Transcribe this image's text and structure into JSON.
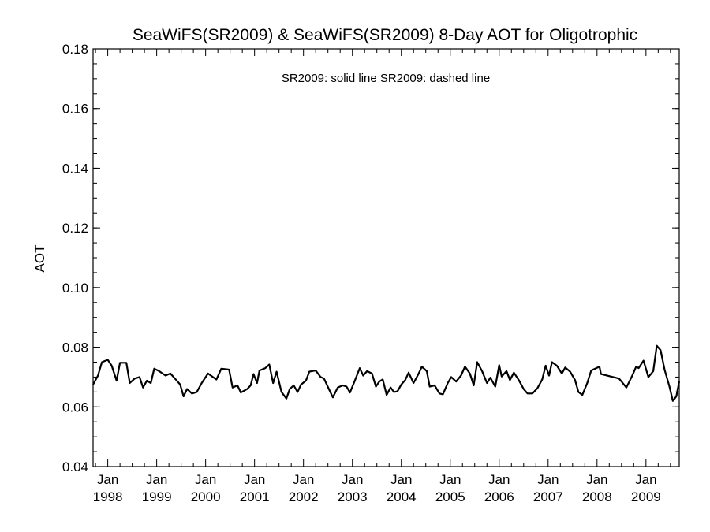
{
  "chart_data": {
    "type": "line",
    "title": "SeaWiFS(SR2009) & SeaWiFS(SR2009) 8-Day AOT for Oligotrophic",
    "xlabel": "",
    "ylabel": "AOT",
    "annotation": "SR2009: solid line   SR2009: dashed line",
    "ylim": [
      0.04,
      0.18
    ],
    "yticks": [
      "0.04",
      "0.06",
      "0.08",
      "0.10",
      "0.12",
      "0.14",
      "0.16",
      "0.18"
    ],
    "xlim": [
      1997.7,
      2009.68
    ],
    "xticks": [
      {
        "x": 1998.0,
        "month": "Jan",
        "year": "1998"
      },
      {
        "x": 1999.0,
        "month": "Jan",
        "year": "1999"
      },
      {
        "x": 2000.0,
        "month": "Jan",
        "year": "2000"
      },
      {
        "x": 2001.0,
        "month": "Jan",
        "year": "2001"
      },
      {
        "x": 2002.0,
        "month": "Jan",
        "year": "2002"
      },
      {
        "x": 2003.0,
        "month": "Jan",
        "year": "2003"
      },
      {
        "x": 2004.0,
        "month": "Jan",
        "year": "2004"
      },
      {
        "x": 2005.0,
        "month": "Jan",
        "year": "2005"
      },
      {
        "x": 2006.0,
        "month": "Jan",
        "year": "2006"
      },
      {
        "x": 2007.0,
        "month": "Jan",
        "year": "2007"
      },
      {
        "x": 2008.0,
        "month": "Jan",
        "year": "2008"
      },
      {
        "x": 2009.0,
        "month": "Jan",
        "year": "2009"
      }
    ],
    "grid": false,
    "series": [
      {
        "style": "solid",
        "color": "#000000",
        "points": [
          [
            1997.7,
            0.0675
          ],
          [
            1997.8,
            0.0705
          ],
          [
            1997.88,
            0.075
          ],
          [
            1998.0,
            0.0758
          ],
          [
            1998.08,
            0.0738
          ],
          [
            1998.18,
            0.0688
          ],
          [
            1998.25,
            0.0748
          ],
          [
            1998.38,
            0.0748
          ],
          [
            1998.45,
            0.068
          ],
          [
            1998.55,
            0.0695
          ],
          [
            1998.65,
            0.07
          ],
          [
            1998.72,
            0.0665
          ],
          [
            1998.8,
            0.0688
          ],
          [
            1998.88,
            0.068
          ],
          [
            1998.95,
            0.0728
          ],
          [
            1999.05,
            0.072
          ],
          [
            1999.18,
            0.0705
          ],
          [
            1999.28,
            0.0712
          ],
          [
            1999.4,
            0.069
          ],
          [
            1999.48,
            0.0675
          ],
          [
            1999.55,
            0.0635
          ],
          [
            1999.62,
            0.066
          ],
          [
            1999.72,
            0.0645
          ],
          [
            1999.82,
            0.065
          ],
          [
            1999.92,
            0.068
          ],
          [
            2000.05,
            0.0712
          ],
          [
            2000.15,
            0.07
          ],
          [
            2000.22,
            0.0692
          ],
          [
            2000.32,
            0.0728
          ],
          [
            2000.48,
            0.0725
          ],
          [
            2000.55,
            0.0665
          ],
          [
            2000.65,
            0.0672
          ],
          [
            2000.72,
            0.0648
          ],
          [
            2000.85,
            0.066
          ],
          [
            2000.92,
            0.0672
          ],
          [
            2000.98,
            0.071
          ],
          [
            2001.05,
            0.068
          ],
          [
            2001.1,
            0.0722
          ],
          [
            2001.22,
            0.073
          ],
          [
            2001.3,
            0.0742
          ],
          [
            2001.38,
            0.068
          ],
          [
            2001.45,
            0.0718
          ],
          [
            2001.55,
            0.065
          ],
          [
            2001.65,
            0.0628
          ],
          [
            2001.72,
            0.066
          ],
          [
            2001.8,
            0.0672
          ],
          [
            2001.88,
            0.065
          ],
          [
            2001.95,
            0.0675
          ],
          [
            2002.05,
            0.0688
          ],
          [
            2002.12,
            0.0718
          ],
          [
            2002.25,
            0.0722
          ],
          [
            2002.35,
            0.07
          ],
          [
            2002.42,
            0.0695
          ],
          [
            2002.52,
            0.066
          ],
          [
            2002.6,
            0.0632
          ],
          [
            2002.7,
            0.0665
          ],
          [
            2002.8,
            0.0672
          ],
          [
            2002.88,
            0.0668
          ],
          [
            2002.95,
            0.0648
          ],
          [
            2003.05,
            0.0688
          ],
          [
            2003.15,
            0.073
          ],
          [
            2003.22,
            0.0705
          ],
          [
            2003.3,
            0.072
          ],
          [
            2003.4,
            0.0712
          ],
          [
            2003.48,
            0.0668
          ],
          [
            2003.55,
            0.0685
          ],
          [
            2003.62,
            0.0692
          ],
          [
            2003.7,
            0.064
          ],
          [
            2003.78,
            0.0665
          ],
          [
            2003.85,
            0.065
          ],
          [
            2003.92,
            0.0652
          ],
          [
            2004.0,
            0.0675
          ],
          [
            2004.08,
            0.069
          ],
          [
            2004.15,
            0.0715
          ],
          [
            2004.25,
            0.068
          ],
          [
            2004.35,
            0.071
          ],
          [
            2004.42,
            0.0735
          ],
          [
            2004.52,
            0.072
          ],
          [
            2004.58,
            0.0668
          ],
          [
            2004.68,
            0.0672
          ],
          [
            2004.78,
            0.0645
          ],
          [
            2004.85,
            0.0642
          ],
          [
            2004.95,
            0.068
          ],
          [
            2005.02,
            0.07
          ],
          [
            2005.12,
            0.0685
          ],
          [
            2005.22,
            0.0705
          ],
          [
            2005.3,
            0.0735
          ],
          [
            2005.4,
            0.0712
          ],
          [
            2005.48,
            0.0672
          ],
          [
            2005.55,
            0.075
          ],
          [
            2005.65,
            0.072
          ],
          [
            2005.75,
            0.068
          ],
          [
            2005.82,
            0.0698
          ],
          [
            2005.92,
            0.0668
          ],
          [
            2006.0,
            0.074
          ],
          [
            2006.05,
            0.0702
          ],
          [
            2006.15,
            0.072
          ],
          [
            2006.22,
            0.069
          ],
          [
            2006.3,
            0.0715
          ],
          [
            2006.4,
            0.069
          ],
          [
            2006.5,
            0.066
          ],
          [
            2006.58,
            0.0645
          ],
          [
            2006.68,
            0.0645
          ],
          [
            2006.78,
            0.0662
          ],
          [
            2006.88,
            0.0692
          ],
          [
            2006.95,
            0.0738
          ],
          [
            2007.02,
            0.0705
          ],
          [
            2007.08,
            0.075
          ],
          [
            2007.18,
            0.0738
          ],
          [
            2007.28,
            0.0712
          ],
          [
            2007.35,
            0.0732
          ],
          [
            2007.45,
            0.0718
          ],
          [
            2007.55,
            0.069
          ],
          [
            2007.62,
            0.065
          ],
          [
            2007.7,
            0.064
          ],
          [
            2007.8,
            0.068
          ],
          [
            2007.88,
            0.0722
          ],
          [
            2008.05,
            0.0735
          ],
          [
            2008.08,
            0.071
          ],
          [
            2008.45,
            0.0695
          ],
          [
            2008.6,
            0.0665
          ],
          [
            2008.72,
            0.0705
          ],
          [
            2008.8,
            0.0735
          ],
          [
            2008.85,
            0.073
          ],
          [
            2008.95,
            0.0755
          ],
          [
            2009.05,
            0.07
          ],
          [
            2009.15,
            0.072
          ],
          [
            2009.22,
            0.0805
          ],
          [
            2009.3,
            0.079
          ],
          [
            2009.38,
            0.0725
          ],
          [
            2009.48,
            0.0668
          ],
          [
            2009.55,
            0.062
          ],
          [
            2009.62,
            0.0635
          ],
          [
            2009.68,
            0.0685
          ]
        ]
      }
    ]
  }
}
